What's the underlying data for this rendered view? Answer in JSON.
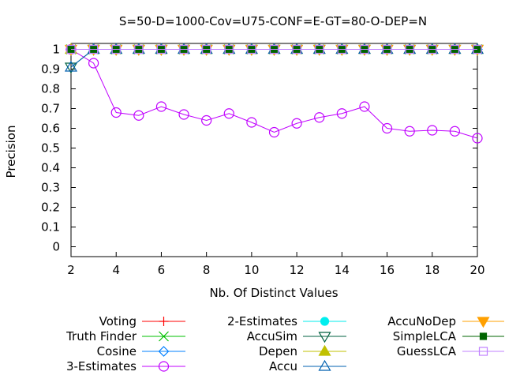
{
  "chart_data": {
    "type": "line",
    "title": "S=50-D=1000-Cov=U75-CONF=E-GT=80-O-DEP=N",
    "xlabel": "Nb. Of Distinct Values",
    "ylabel": "Precision",
    "xlim": [
      2,
      20
    ],
    "ylim": [
      -0.05,
      1.03
    ],
    "x_ticks": [
      2,
      4,
      6,
      8,
      10,
      12,
      14,
      16,
      18,
      20
    ],
    "y_ticks": [
      0,
      0.1,
      0.2,
      0.3,
      0.4,
      0.5,
      0.6,
      0.7,
      0.8,
      0.9,
      1
    ],
    "y_tick_labels": [
      "0",
      "0.1",
      "0.2",
      "0.3",
      "0.4",
      "0.5",
      "0.6",
      "0.7",
      "0.8",
      "0.9",
      "1"
    ],
    "grid": false,
    "legend_position": "bottom",
    "x": [
      2,
      3,
      4,
      5,
      6,
      7,
      8,
      9,
      10,
      11,
      12,
      13,
      14,
      15,
      16,
      17,
      18,
      19,
      20
    ],
    "series": [
      {
        "name": "Voting",
        "color": "#ff0000",
        "marker": "plus",
        "values": [
          1,
          1,
          1,
          1,
          1,
          1,
          1,
          1,
          1,
          1,
          1,
          1,
          1,
          1,
          1,
          1,
          1,
          1,
          1
        ]
      },
      {
        "name": "Truth Finder",
        "color": "#00c000",
        "marker": "cross",
        "values": [
          1,
          1,
          1,
          1,
          1,
          1,
          1,
          1,
          1,
          1,
          1,
          1,
          1,
          1,
          1,
          1,
          1,
          1,
          1
        ]
      },
      {
        "name": "Cosine",
        "color": "#0080ff",
        "marker": "diamond",
        "values": [
          1,
          1,
          1,
          1,
          1,
          1,
          1,
          1,
          1,
          1,
          1,
          1,
          1,
          1,
          1,
          1,
          1,
          1,
          1
        ]
      },
      {
        "name": "3-Estimates",
        "color": "#c000ff",
        "marker": "circle",
        "values": [
          1.0,
          0.93,
          0.68,
          0.665,
          0.71,
          0.67,
          0.64,
          0.675,
          0.63,
          0.58,
          0.625,
          0.655,
          0.675,
          0.71,
          0.6,
          0.585,
          0.59,
          0.585,
          0.55
        ]
      },
      {
        "name": "2-Estimates",
        "color": "#00eeee",
        "marker": "filled-circle",
        "values": [
          1,
          1,
          1,
          1,
          1,
          1,
          1,
          1,
          1,
          1,
          1,
          1,
          1,
          1,
          1,
          1,
          1,
          1,
          1
        ]
      },
      {
        "name": "AccuSim",
        "color": "#006040",
        "marker": "triangle-down",
        "values": [
          0.91,
          1,
          1,
          1,
          1,
          1,
          1,
          1,
          1,
          1,
          1,
          1,
          1,
          1,
          1,
          1,
          1,
          1,
          1
        ]
      },
      {
        "name": "Depen",
        "color": "#c0c000",
        "marker": "filled-triangle",
        "values": [
          1,
          1,
          1,
          1,
          1,
          1,
          1,
          1,
          1,
          1,
          1,
          1,
          1,
          1,
          1,
          1,
          1,
          1,
          1
        ]
      },
      {
        "name": "Accu",
        "color": "#0060b0",
        "marker": "triangle",
        "values": [
          0.91,
          1,
          1,
          1,
          1,
          1,
          1,
          1,
          1,
          1,
          1,
          1,
          1,
          1,
          1,
          1,
          1,
          1,
          1
        ]
      },
      {
        "name": "AccuNoDep",
        "color": "#ffa000",
        "marker": "filled-triangle-down",
        "values": [
          1,
          1,
          1,
          1,
          1,
          1,
          1,
          1,
          1,
          1,
          1,
          1,
          1,
          1,
          1,
          1,
          1,
          1,
          1
        ]
      },
      {
        "name": "SimpleLCA",
        "color": "#006400",
        "marker": "filled-square",
        "values": [
          1,
          1,
          1,
          1,
          1,
          1,
          1,
          1,
          1,
          1,
          1,
          1,
          1,
          1,
          1,
          1,
          1,
          1,
          1
        ]
      },
      {
        "name": "GuessLCA",
        "color": "#c080ff",
        "marker": "square",
        "values": [
          1,
          1,
          1,
          1,
          1,
          1,
          1,
          1,
          1,
          1,
          1,
          1,
          1,
          1,
          1,
          1,
          1,
          1,
          1
        ]
      }
    ]
  }
}
